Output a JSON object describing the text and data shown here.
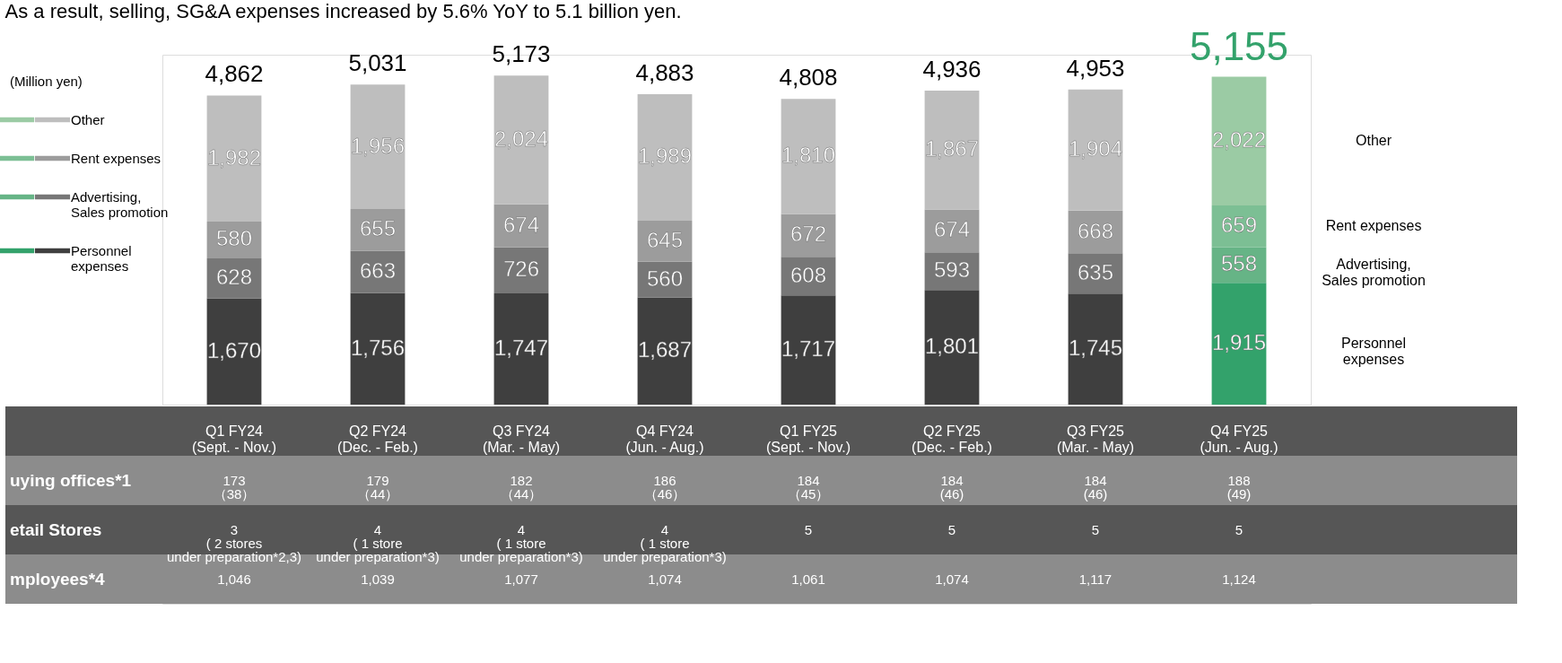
{
  "chart_data": {
    "type": "bar",
    "stacked": true,
    "title": "As a result, selling, SG&A expenses increased by 5.6% YoY to 5.1 billion yen.",
    "legend": "left",
    "categories": [
      "Q1 FY24\n(Sept. - Nov.)",
      "Q2 FY24\n(Dec. - Feb.)",
      "Q3 FY24\n(Mar. - May)",
      "Q4 FY24\n(Jun. - Aug.)",
      "Q1 FY25\n(Sept. - Nov.)",
      "Q2 FY25\n(Dec. - Feb.)",
      "Q3 FY25\n(Mar. - May)",
      "Q4 FY25\n(Jun. - Aug.)"
    ],
    "series": [
      {
        "name": "Personnel\nexpenses",
        "color": "#3f3f3f",
        "colors": [
          "#3f3f3f",
          "#3f3f3f",
          "#3f3f3f",
          "#3f3f3f",
          "#3f3f3f",
          "#3f3f3f",
          "#3f3f3f",
          "#33a26b"
        ],
        "values": [
          1670,
          1756,
          1747,
          1687,
          1717,
          1801,
          1745,
          1915
        ],
        "value_labels": [
          "1,670",
          "1,756",
          "1,747",
          "1,687",
          "1,717",
          "1,801",
          "1,745",
          "1,915"
        ]
      },
      {
        "name": "Advertising,\nSales promotion",
        "color": "#777777",
        "colors": [
          "#777777",
          "#777777",
          "#777777",
          "#777777",
          "#777777",
          "#777777",
          "#777777",
          "#66b486"
        ],
        "values": [
          628,
          663,
          726,
          560,
          608,
          593,
          635,
          558
        ],
        "value_labels": [
          "628",
          "663",
          "726",
          "560",
          "608",
          "593",
          "635",
          "558"
        ]
      },
      {
        "name": "Rent expenses",
        "color": "#9c9c9c",
        "colors": [
          "#9c9c9c",
          "#9c9c9c",
          "#9c9c9c",
          "#9c9c9c",
          "#9c9c9c",
          "#9c9c9c",
          "#9c9c9c",
          "#7cbf94"
        ],
        "values": [
          580,
          655,
          674,
          645,
          672,
          674,
          668,
          659
        ],
        "value_labels": [
          "580",
          "655",
          "674",
          "645",
          "672",
          "674",
          "668",
          "659"
        ]
      },
      {
        "name": "Other",
        "color": "#bebebe",
        "colors": [
          "#bebebe",
          "#bebebe",
          "#bebebe",
          "#bebebe",
          "#bebebe",
          "#bebebe",
          "#bebebe",
          "#9bcba4"
        ],
        "values": [
          1982,
          1956,
          2024,
          1989,
          1810,
          1867,
          1904,
          2022
        ],
        "value_labels": [
          "1,982",
          "1,956",
          "2,024",
          "1,989",
          "1,810",
          "1,867",
          "1,904",
          "2,022"
        ]
      }
    ],
    "totals": [
      "4,862",
      "5,031",
      "5,173",
      "4,883",
      "4,808",
      "4,936",
      "4,953",
      "5,155"
    ],
    "annotations": [
      "(Million yen)",
      "uying offices*1",
      "173\n（38）",
      "179\n（44）",
      "182\n（44）",
      "186\n（46）",
      "184\n（45）",
      "184\n(46)",
      "184\n(46)",
      "188\n(49)",
      "etail Stores",
      "3\n( 2 stores\nunder preparation*2,3)",
      "4\n( 1 store\nunder preparation*3)",
      "4\n( 1 store\nunder preparation*3)",
      "4\n( 1 store\nunder preparation*3)",
      "5",
      "5",
      "5",
      "5",
      "mployees*4",
      "1,046",
      "1,039",
      "1,077",
      "1,074",
      "1,061",
      "1,074",
      "1,117",
      "1,124"
    ]
  }
}
